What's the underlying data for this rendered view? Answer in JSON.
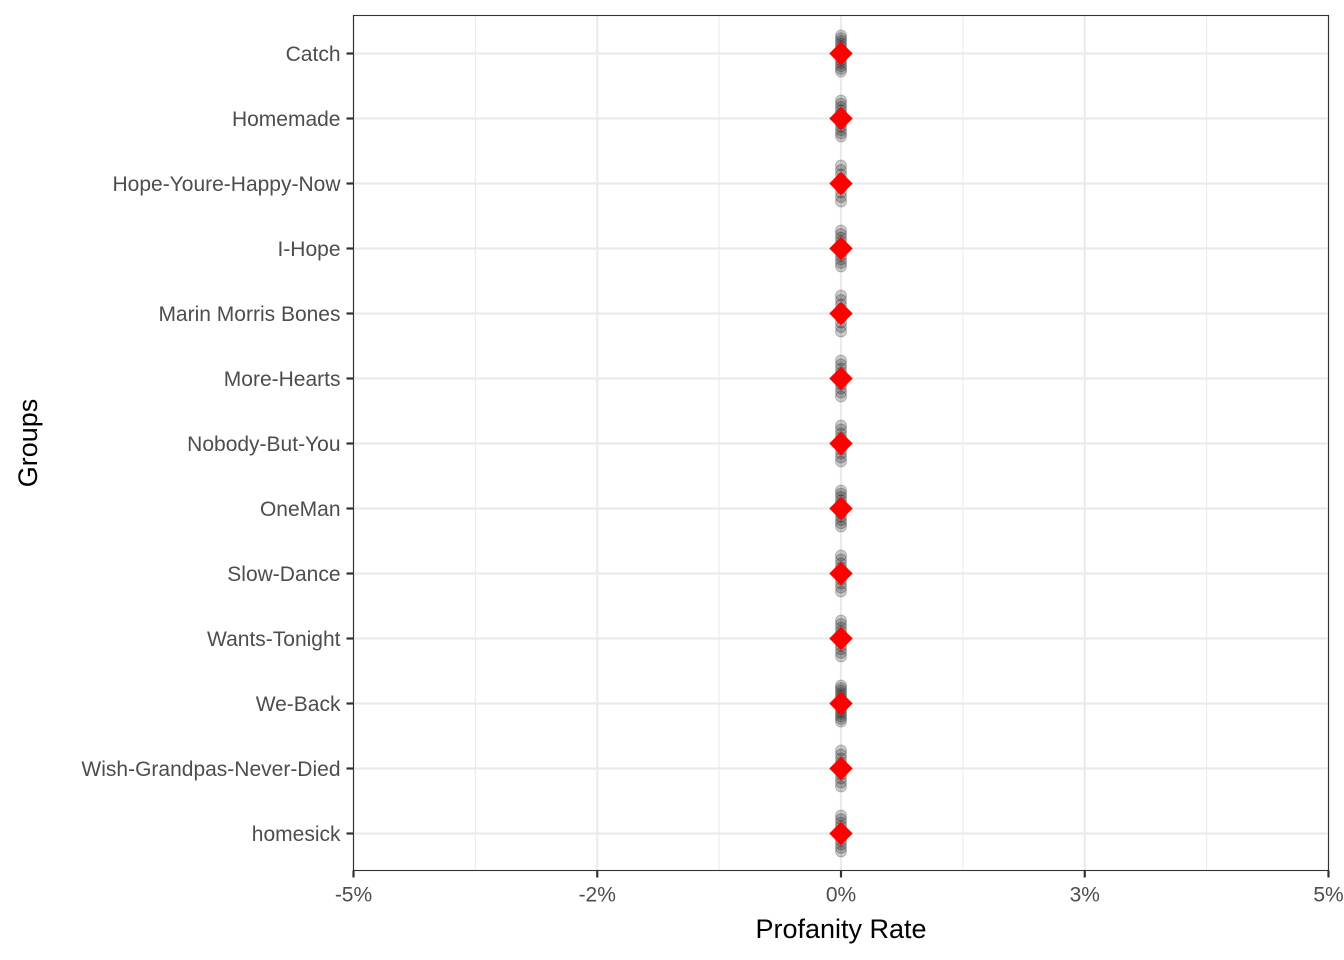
{
  "chart_data": {
    "type": "scatter",
    "orientation": "horizontal",
    "title": "",
    "xlabel": "Profanity Rate",
    "ylabel": "Groups",
    "xlim": [
      -0.05,
      0.05
    ],
    "x_tick_values": [
      -0.05,
      -0.025,
      0,
      0.025,
      0.05
    ],
    "x_tick_labels": [
      "-5%",
      "-2%",
      "0%",
      "3%",
      "5%"
    ],
    "categories": [
      "Catch",
      "Homemade",
      "Hope-Youre-Happy-Now",
      "I-Hope",
      "Marin Morris Bones",
      "More-Hearts",
      "Nobody-But-You",
      "OneMan",
      "Slow-Dance",
      "Wants-Tonight",
      "We-Back",
      "Wish-Grandpas-Never-Died",
      "homesick"
    ],
    "series": [
      {
        "kind": "observations",
        "color": "#000000",
        "opacity": 0.2,
        "values": [
          [
            0,
            0,
            0,
            0,
            0,
            0,
            0,
            0,
            0,
            0,
            0,
            0,
            0,
            0
          ],
          [
            0,
            0,
            0,
            0,
            0,
            0,
            0,
            0,
            0,
            0,
            0,
            0
          ],
          [
            0,
            0,
            0,
            0,
            0,
            0,
            0,
            0,
            0
          ],
          [
            0,
            0,
            0,
            0,
            0,
            0,
            0,
            0,
            0,
            0,
            0
          ],
          [
            0,
            0,
            0,
            0,
            0,
            0,
            0,
            0,
            0
          ],
          [
            0,
            0,
            0,
            0,
            0,
            0,
            0,
            0,
            0,
            0
          ],
          [
            0,
            0,
            0,
            0,
            0,
            0,
            0,
            0,
            0,
            0
          ],
          [
            0,
            0,
            0,
            0,
            0,
            0,
            0,
            0,
            0,
            0,
            0,
            0
          ],
          [
            0,
            0,
            0,
            0,
            0,
            0,
            0,
            0,
            0,
            0
          ],
          [
            0,
            0,
            0,
            0,
            0,
            0,
            0,
            0,
            0,
            0,
            0
          ],
          [
            0,
            0,
            0,
            0,
            0,
            0,
            0,
            0,
            0,
            0,
            0,
            0,
            0,
            0,
            0
          ],
          [
            0,
            0,
            0,
            0,
            0,
            0,
            0,
            0,
            0,
            0
          ],
          [
            0,
            0,
            0,
            0,
            0,
            0,
            0,
            0,
            0,
            0,
            0
          ]
        ]
      },
      {
        "kind": "mean",
        "color": "#ff0000",
        "marker": "diamond",
        "values": [
          0,
          0,
          0,
          0,
          0,
          0,
          0,
          0,
          0,
          0,
          0,
          0,
          0
        ]
      }
    ],
    "grid": true,
    "legend": "none"
  }
}
